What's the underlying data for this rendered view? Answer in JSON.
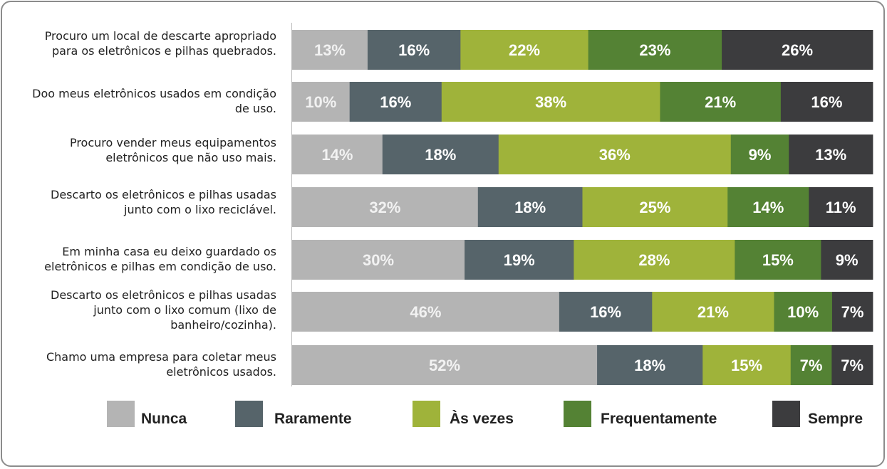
{
  "chart_data": {
    "type": "bar",
    "orientation": "horizontal",
    "stacked": true,
    "normalized": true,
    "categories": [
      [
        "Procuro um local de descarte apropriado",
        "para os eletrônicos e pilhas quebrados."
      ],
      [
        "Doo meus eletrônicos usados em condição",
        "de uso."
      ],
      [
        "Procuro vender meus equipamentos",
        "eletrônicos que não uso mais."
      ],
      [
        "Descarto os eletrônicos e pilhas usadas",
        "junto com o lixo reciclável."
      ],
      [
        "Em minha casa eu deixo guardado os",
        "eletrônicos e pilhas em condição de uso."
      ],
      [
        "Descarto os eletrônicos e pilhas usadas",
        "junto com o lixo comum (lixo de",
        "banheiro/cozinha)."
      ],
      [
        "Chamo uma empresa para coletar meus",
        "eletrônicos usados."
      ]
    ],
    "series": [
      {
        "name": "Nunca",
        "color": "#b4b4b4",
        "values": [
          13,
          10,
          14,
          32,
          30,
          46,
          52
        ]
      },
      {
        "name": "Raramente",
        "color": "#56646a",
        "values": [
          16,
          16,
          18,
          18,
          19,
          16,
          18
        ]
      },
      {
        "name": "Às vezes",
        "color": "#9fb33a",
        "values": [
          22,
          38,
          36,
          25,
          28,
          21,
          15
        ]
      },
      {
        "name": "Frequentamente",
        "color": "#548234",
        "values": [
          23,
          21,
          9,
          14,
          15,
          10,
          7
        ]
      },
      {
        "name": "Sempre",
        "color": "#3c3c3e",
        "values": [
          26,
          16,
          13,
          11,
          9,
          7,
          7
        ]
      }
    ],
    "value_labels": [
      [
        "13%",
        "16%",
        "22%",
        "23%",
        "26%"
      ],
      [
        "10%",
        "16%",
        "38%",
        "21%",
        "16%"
      ],
      [
        "14%",
        "18%",
        "36%",
        "9%",
        "13%"
      ],
      [
        "32%",
        "18%",
        "25%",
        "14%",
        "11%"
      ],
      [
        "30%",
        "19%",
        "28%",
        "15%",
        "9%"
      ],
      [
        "46%",
        "16%",
        "21%",
        "10%",
        "7%"
      ],
      [
        "52%",
        "18%",
        "15%",
        "7%",
        "7%"
      ]
    ],
    "legend_position": "bottom",
    "grid": false
  }
}
